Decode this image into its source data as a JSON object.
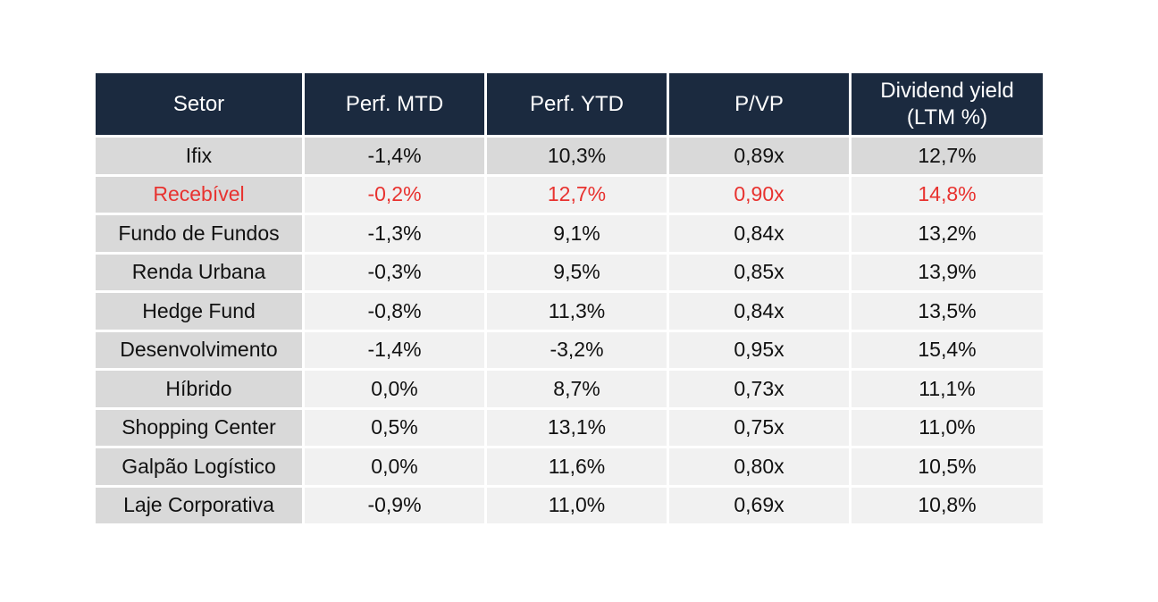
{
  "colors": {
    "header_bg": "#1b2a3f",
    "highlight_text": "#e8322f",
    "label_cell_bg": "#d9d9d9",
    "value_cell_bg": "#f1f1f1"
  },
  "table": {
    "headers": {
      "setor": "Setor",
      "perf_mtd": "Perf. MTD",
      "perf_ytd": "Perf. YTD",
      "p_vp": "P/VP",
      "dividend_yield_line1": "Dividend yield",
      "dividend_yield_line2": "(LTM %)"
    },
    "rows": [
      {
        "setor": "Ifix",
        "perf_mtd": "-1,4%",
        "perf_ytd": "10,3%",
        "p_vp": "0,89x",
        "dividend_yield": "12,7%"
      },
      {
        "setor": "Recebível",
        "perf_mtd": "-0,2%",
        "perf_ytd": "12,7%",
        "p_vp": "0,90x",
        "dividend_yield": "14,8%"
      },
      {
        "setor": "Fundo de Fundos",
        "perf_mtd": "-1,3%",
        "perf_ytd": "9,1%",
        "p_vp": "0,84x",
        "dividend_yield": "13,2%"
      },
      {
        "setor": "Renda Urbana",
        "perf_mtd": "-0,3%",
        "perf_ytd": "9,5%",
        "p_vp": "0,85x",
        "dividend_yield": "13,9%"
      },
      {
        "setor": "Hedge Fund",
        "perf_mtd": "-0,8%",
        "perf_ytd": "11,3%",
        "p_vp": "0,84x",
        "dividend_yield": "13,5%"
      },
      {
        "setor": "Desenvolvimento",
        "perf_mtd": "-1,4%",
        "perf_ytd": "-3,2%",
        "p_vp": "0,95x",
        "dividend_yield": "15,4%"
      },
      {
        "setor": "Híbrido",
        "perf_mtd": "0,0%",
        "perf_ytd": "8,7%",
        "p_vp": "0,73x",
        "dividend_yield": "11,1%"
      },
      {
        "setor": "Shopping Center",
        "perf_mtd": "0,5%",
        "perf_ytd": "13,1%",
        "p_vp": "0,75x",
        "dividend_yield": "11,0%"
      },
      {
        "setor": "Galpão Logístico",
        "perf_mtd": "0,0%",
        "perf_ytd": "11,6%",
        "p_vp": "0,80x",
        "dividend_yield": "10,5%"
      },
      {
        "setor": "Laje Corporativa",
        "perf_mtd": "-0,9%",
        "perf_ytd": "11,0%",
        "p_vp": "0,69x",
        "dividend_yield": "10,8%"
      }
    ]
  }
}
